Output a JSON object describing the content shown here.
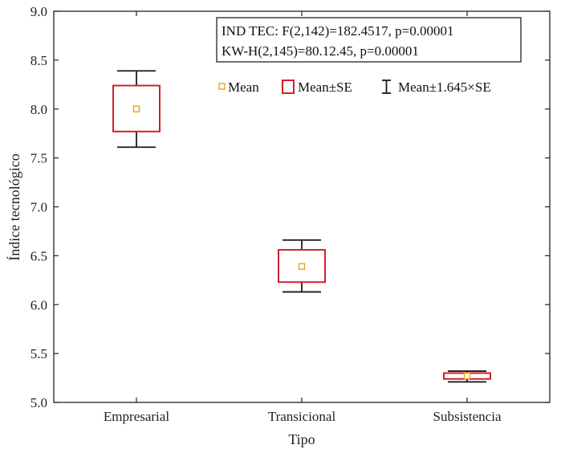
{
  "chart_data": {
    "type": "box",
    "xlabel": "Tipo",
    "ylabel": "Índice tecnológico",
    "ylim": [
      5.0,
      9.0
    ],
    "yticks": [
      "5.0",
      "5.5",
      "6.0",
      "6.5",
      "7.0",
      "7.5",
      "8.0",
      "8.5",
      "9.0"
    ],
    "categories": [
      "Empresarial",
      "Transicional",
      "Subsistencia"
    ],
    "series": [
      {
        "category": "Empresarial",
        "mean": 8.0,
        "se_low": 7.77,
        "se_high": 8.24,
        "ci_low": 7.61,
        "ci_high": 8.39
      },
      {
        "category": "Transicional",
        "mean": 6.39,
        "se_low": 6.23,
        "se_high": 6.56,
        "ci_low": 6.13,
        "ci_high": 6.66
      },
      {
        "category": "Subsistencia",
        "mean": 5.27,
        "se_low": 5.24,
        "se_high": 5.3,
        "ci_low": 5.21,
        "ci_high": 5.32
      }
    ],
    "stats_lines": [
      "IND TEC: F(2,142)=182.4517, p=0.00001",
      "KW-H(2,145)=80.12.45, p=0.00001"
    ],
    "legend": [
      {
        "label": "Mean",
        "marker": "square"
      },
      {
        "label": "Mean±SE",
        "marker": "box"
      },
      {
        "label": "Mean±1.645×SE",
        "marker": "whisker"
      }
    ],
    "legend_position": "top-right",
    "grid": false
  },
  "colors": {
    "mean_marker": "#e8a317",
    "se_box": "#d0202a",
    "whisker": "#1a1a1a",
    "axis": "#222222"
  }
}
